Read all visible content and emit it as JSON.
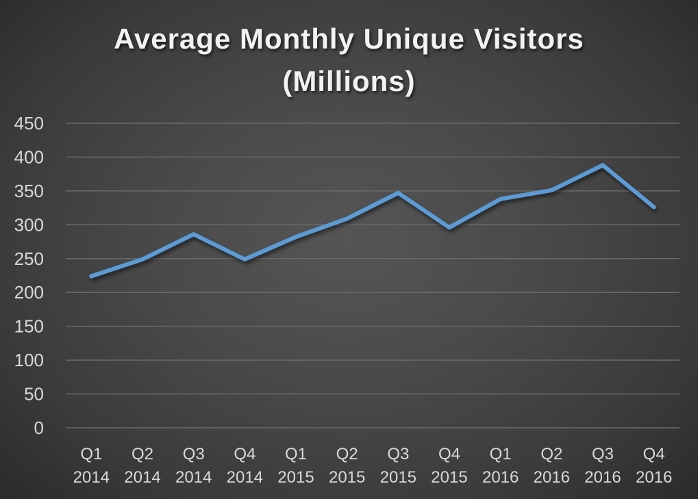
{
  "chart_data": {
    "type": "line",
    "title": "Average Monthly Unique Visitors (Millions)",
    "title_lines": [
      "Average Monthly Unique Visitors",
      "(Millions)"
    ],
    "xlabel": "",
    "ylabel": "",
    "ylim": [
      0,
      450
    ],
    "y_ticks": [
      0,
      50,
      100,
      150,
      200,
      250,
      300,
      350,
      400,
      450
    ],
    "grid": true,
    "legend": "none",
    "categories": [
      [
        "Q1",
        "2014"
      ],
      [
        "Q2",
        "2014"
      ],
      [
        "Q3",
        "2014"
      ],
      [
        "Q4",
        "2014"
      ],
      [
        "Q1",
        "2015"
      ],
      [
        "Q2",
        "2015"
      ],
      [
        "Q3",
        "2015"
      ],
      [
        "Q4",
        "2015"
      ],
      [
        "Q1",
        "2016"
      ],
      [
        "Q2",
        "2016"
      ],
      [
        "Q3",
        "2016"
      ],
      [
        "Q4",
        "2016"
      ]
    ],
    "series": [
      {
        "name": "Average Monthly Unique Visitors",
        "color": "#5B9BD5",
        "values": [
          224,
          249,
          286,
          249,
          282,
          309,
          347,
          296,
          338,
          351,
          388,
          326
        ]
      }
    ]
  },
  "colors": {
    "background_center": "#555555",
    "background_edge": "#262626",
    "text": "#d9d9d9",
    "title": "#f2f2f2",
    "gridline": "#6a6a6a",
    "line": "#5B9BD5"
  }
}
